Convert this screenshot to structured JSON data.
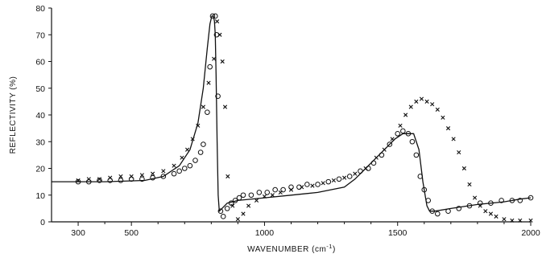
{
  "chart_data": {
    "type": "line",
    "xlabel_main": "WAVENUMBER",
    "xlabel_unit_open": " (cm",
    "xlabel_unit_sup": "-1",
    "xlabel_unit_close": ")",
    "ylabel": "REFLECTIVITY (%)",
    "xlim": [
      200,
      2000
    ],
    "ylim": [
      0,
      80
    ],
    "x_ticks": [
      300,
      500,
      1000,
      1500,
      2000
    ],
    "x_minor_ticks": [
      400,
      600,
      700,
      800,
      900,
      1100,
      1200,
      1300,
      1400,
      1600,
      1700,
      1800,
      1900
    ],
    "y_ticks": [
      0,
      10,
      20,
      30,
      40,
      50,
      60,
      70,
      80
    ],
    "x_tick_labels": [
      "300",
      "500",
      "1000",
      "1500",
      "2000"
    ],
    "y_tick_labels": [
      "0",
      "10",
      "20",
      "30",
      "40",
      "50",
      "60",
      "70",
      "80"
    ],
    "series": [
      {
        "marker": "line",
        "x": [
          200,
          400,
          550,
          620,
          680,
          720,
          750,
          770,
          785,
          795,
          802,
          808,
          812,
          815,
          818,
          822,
          826,
          830,
          840,
          860,
          900,
          1000,
          1100,
          1200,
          1300,
          1340,
          1380,
          1420,
          1460,
          1490,
          1520,
          1535,
          1560,
          1580,
          1595,
          1610,
          1620,
          1640,
          1700,
          1800,
          1900,
          1960,
          2000
        ],
        "y": [
          15,
          15,
          15.5,
          17,
          21,
          27,
          37,
          50,
          65,
          74,
          77,
          77,
          75,
          70,
          55,
          30,
          10,
          4,
          5,
          7,
          8,
          9,
          10,
          11,
          13,
          16,
          20,
          24,
          28,
          31,
          33,
          33,
          33,
          27,
          15,
          6,
          4,
          4,
          5,
          6.5,
          7.5,
          8.5,
          9
        ]
      },
      {
        "marker": "circle",
        "x": [
          300,
          340,
          380,
          420,
          460,
          500,
          540,
          580,
          620,
          660,
          680,
          700,
          720,
          740,
          760,
          770,
          785,
          795,
          805,
          815,
          820,
          825,
          835,
          845,
          860,
          875,
          890,
          905,
          920,
          950,
          980,
          1010,
          1040,
          1070,
          1100,
          1130,
          1160,
          1200,
          1240,
          1280,
          1320,
          1360,
          1390,
          1410,
          1440,
          1470,
          1500,
          1520,
          1540,
          1555,
          1570,
          1585,
          1600,
          1615,
          1630,
          1650,
          1690,
          1730,
          1770,
          1810,
          1850,
          1890,
          1930,
          1960,
          2000
        ],
        "y": [
          15,
          15,
          15.5,
          15.5,
          15.5,
          16,
          16,
          16.5,
          17,
          18,
          19,
          20,
          21,
          23,
          26,
          29,
          41,
          58,
          77,
          77,
          70,
          47,
          4,
          2,
          5,
          7,
          8,
          9,
          10,
          10,
          11,
          11,
          12,
          12,
          13,
          13,
          14,
          14,
          15,
          16,
          17,
          19,
          20,
          22,
          25,
          29,
          33,
          34,
          33,
          30,
          25,
          17,
          12,
          8,
          4,
          3,
          4,
          5,
          6,
          7,
          7,
          8,
          8,
          8,
          9
        ]
      },
      {
        "marker": "cross",
        "x": [
          300,
          340,
          380,
          420,
          460,
          500,
          540,
          580,
          620,
          660,
          690,
          710,
          730,
          750,
          770,
          790,
          810,
          822,
          832,
          842,
          852,
          862,
          880,
          900,
          920,
          940,
          970,
          1000,
          1030,
          1060,
          1100,
          1140,
          1180,
          1220,
          1260,
          1300,
          1340,
          1380,
          1420,
          1450,
          1480,
          1510,
          1530,
          1550,
          1570,
          1590,
          1610,
          1630,
          1650,
          1670,
          1690,
          1710,
          1730,
          1750,
          1770,
          1790,
          1810,
          1830,
          1850,
          1870,
          1900,
          1930,
          1960,
          2000
        ],
        "y": [
          15.5,
          16,
          16,
          16.5,
          17,
          17,
          17.5,
          18,
          19,
          21,
          24,
          27,
          31,
          36,
          43,
          52,
          61,
          75,
          70,
          60,
          43,
          17,
          6,
          1,
          3,
          6,
          8,
          9.5,
          10,
          11,
          12,
          13,
          13.5,
          14.5,
          15.5,
          16.5,
          18,
          20,
          24,
          27,
          31,
          36,
          40,
          43,
          45,
          46,
          45,
          44,
          42,
          39,
          35,
          31,
          26,
          20,
          14,
          9,
          6,
          4,
          3,
          2,
          1,
          0.5,
          0.5,
          0.5
        ]
      }
    ]
  }
}
